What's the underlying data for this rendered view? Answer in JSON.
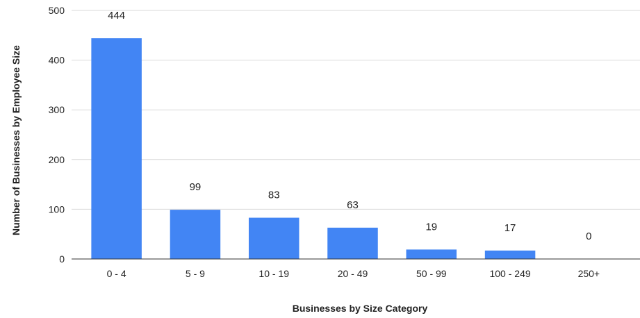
{
  "chart_data": {
    "type": "bar",
    "title": "",
    "xlabel": "Businesses by Size Category",
    "ylabel": "Number of Businesses by Employee Size",
    "categories": [
      "0 - 4",
      "5 - 9",
      "10 - 19",
      "20 - 49",
      "50 - 99",
      "100 - 249",
      "250+"
    ],
    "values": [
      444,
      99,
      83,
      63,
      19,
      17,
      0
    ],
    "data_labels": [
      "444",
      "99",
      "83",
      "63",
      "19",
      "17",
      "0"
    ],
    "ylim": [
      0,
      500
    ],
    "yticks": [
      0,
      100,
      200,
      300,
      400,
      500
    ],
    "ytick_labels": [
      "0",
      "100",
      "200",
      "300",
      "400",
      "500"
    ],
    "grid": true,
    "legend": "none",
    "bar_color": "#4285f4"
  }
}
